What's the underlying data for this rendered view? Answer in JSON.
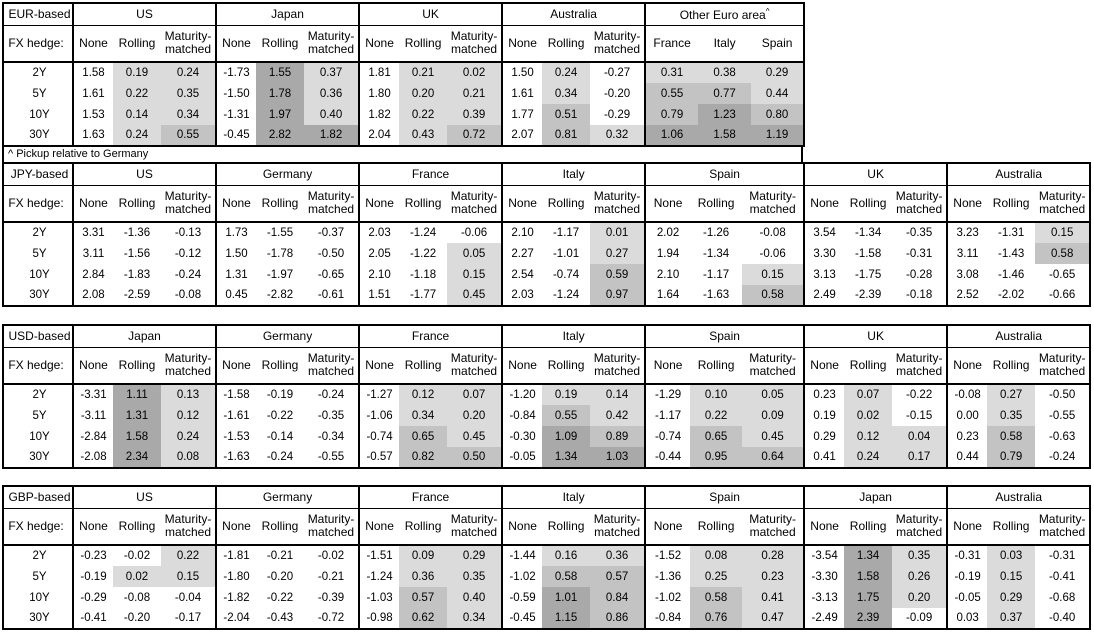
{
  "footnote": "^ Pickup relative to Germany",
  "row_header_label": "FX hedge:",
  "hedge_types": [
    "None",
    "Rolling",
    "Maturity-matched"
  ],
  "maturities": [
    "2Y",
    "5Y",
    "10Y",
    "30Y"
  ],
  "shading": {
    "rule": "Rolling and Maturity-matched cells (and all Other-Euro-area cells) are shaded by value; the None column is never shaded",
    "colors": {
      "none": "#ffffff",
      "light": "#dbdbdb",
      "medium": "#c3c3c3",
      "dark": "#a9a9a9"
    },
    "thresholds": {
      "light_above": 0,
      "medium_at": 0.5,
      "dark_at": 1.0
    }
  },
  "chart_data": [
    {
      "type": "table",
      "base": "EUR-based",
      "row_labels": [
        "2Y",
        "5Y",
        "10Y",
        "30Y"
      ],
      "groups": [
        {
          "name": "US",
          "columns": [
            "None",
            "Rolling",
            "Maturity-matched"
          ],
          "values": [
            [
              1.58,
              0.19,
              0.24
            ],
            [
              1.61,
              0.22,
              0.35
            ],
            [
              1.53,
              0.14,
              0.34
            ],
            [
              1.63,
              0.24,
              0.55
            ]
          ]
        },
        {
          "name": "Japan",
          "columns": [
            "None",
            "Rolling",
            "Maturity-matched"
          ],
          "values": [
            [
              -1.73,
              1.55,
              0.37
            ],
            [
              -1.5,
              1.78,
              0.36
            ],
            [
              -1.31,
              1.97,
              0.4
            ],
            [
              -0.45,
              2.82,
              1.82
            ]
          ]
        },
        {
          "name": "UK",
          "columns": [
            "None",
            "Rolling",
            "Maturity-matched"
          ],
          "values": [
            [
              1.81,
              0.21,
              0.02
            ],
            [
              1.8,
              0.2,
              0.21
            ],
            [
              1.82,
              0.22,
              0.39
            ],
            [
              2.04,
              0.43,
              0.72
            ]
          ]
        },
        {
          "name": "Australia",
          "columns": [
            "None",
            "Rolling",
            "Maturity-matched"
          ],
          "values": [
            [
              1.5,
              0.24,
              -0.27
            ],
            [
              1.61,
              0.34,
              -0.2
            ],
            [
              1.77,
              0.51,
              -0.29
            ],
            [
              2.07,
              0.81,
              0.32
            ]
          ]
        },
        {
          "name": "Other Euro area",
          "superscript": "^",
          "columns": [
            "France",
            "Italy",
            "Spain"
          ],
          "values": [
            [
              0.31,
              0.38,
              0.29
            ],
            [
              0.55,
              0.77,
              0.44
            ],
            [
              0.79,
              1.23,
              0.8
            ],
            [
              1.06,
              1.58,
              1.19
            ]
          ]
        }
      ]
    },
    {
      "type": "table",
      "base": "JPY-based",
      "row_labels": [
        "2Y",
        "5Y",
        "10Y",
        "30Y"
      ],
      "groups": [
        {
          "name": "US",
          "columns": [
            "None",
            "Rolling",
            "Maturity-matched"
          ],
          "values": [
            [
              3.31,
              -1.36,
              -0.13
            ],
            [
              3.11,
              -1.56,
              -0.12
            ],
            [
              2.84,
              -1.83,
              -0.24
            ],
            [
              2.08,
              -2.59,
              -0.08
            ]
          ]
        },
        {
          "name": "Germany",
          "columns": [
            "None",
            "Rolling",
            "Maturity-matched"
          ],
          "values": [
            [
              1.73,
              -1.55,
              -0.37
            ],
            [
              1.5,
              -1.78,
              -0.5
            ],
            [
              1.31,
              -1.97,
              -0.65
            ],
            [
              0.45,
              -2.82,
              -0.61
            ]
          ]
        },
        {
          "name": "France",
          "columns": [
            "None",
            "Rolling",
            "Maturity-matched"
          ],
          "values": [
            [
              2.03,
              -1.24,
              -0.06
            ],
            [
              2.05,
              -1.22,
              0.05
            ],
            [
              2.1,
              -1.18,
              0.15
            ],
            [
              1.51,
              -1.77,
              0.45
            ]
          ]
        },
        {
          "name": "Italy",
          "columns": [
            "None",
            "Rolling",
            "Maturity-matched"
          ],
          "values": [
            [
              2.1,
              -1.17,
              0.01
            ],
            [
              2.27,
              -1.01,
              0.27
            ],
            [
              2.54,
              -0.74,
              0.59
            ],
            [
              2.03,
              -1.24,
              0.97
            ]
          ]
        },
        {
          "name": "Spain",
          "columns": [
            "None",
            "Rolling",
            "Maturity-matched"
          ],
          "values": [
            [
              2.02,
              -1.26,
              -0.08
            ],
            [
              1.94,
              -1.34,
              -0.06
            ],
            [
              2.1,
              -1.17,
              0.15
            ],
            [
              1.64,
              -1.63,
              0.58
            ]
          ]
        },
        {
          "name": "UK",
          "columns": [
            "None",
            "Rolling",
            "Maturity-matched"
          ],
          "values": [
            [
              3.54,
              -1.34,
              -0.35
            ],
            [
              3.3,
              -1.58,
              -0.31
            ],
            [
              3.13,
              -1.75,
              -0.28
            ],
            [
              2.49,
              -2.39,
              -0.18
            ]
          ]
        },
        {
          "name": "Australia",
          "columns": [
            "None",
            "Rolling",
            "Maturity-matched"
          ],
          "values": [
            [
              3.23,
              -1.31,
              0.15
            ],
            [
              3.11,
              -1.43,
              0.58
            ],
            [
              3.08,
              -1.46,
              -0.65
            ],
            [
              2.52,
              -2.02,
              -0.66
            ]
          ]
        }
      ]
    },
    {
      "type": "table",
      "base": "USD-based",
      "row_labels": [
        "2Y",
        "5Y",
        "10Y",
        "30Y"
      ],
      "groups": [
        {
          "name": "Japan",
          "columns": [
            "None",
            "Rolling",
            "Maturity-matched"
          ],
          "values": [
            [
              -3.31,
              1.11,
              0.13
            ],
            [
              -3.11,
              1.31,
              0.12
            ],
            [
              -2.84,
              1.58,
              0.24
            ],
            [
              -2.08,
              2.34,
              0.08
            ]
          ]
        },
        {
          "name": "Germany",
          "columns": [
            "None",
            "Rolling",
            "Maturity-matched"
          ],
          "values": [
            [
              -1.58,
              -0.19,
              -0.24
            ],
            [
              -1.61,
              -0.22,
              -0.35
            ],
            [
              -1.53,
              -0.14,
              -0.34
            ],
            [
              -1.63,
              -0.24,
              -0.55
            ]
          ]
        },
        {
          "name": "France",
          "columns": [
            "None",
            "Rolling",
            "Maturity-matched"
          ],
          "values": [
            [
              -1.27,
              0.12,
              0.07
            ],
            [
              -1.06,
              0.34,
              0.2
            ],
            [
              -0.74,
              0.65,
              0.45
            ],
            [
              -0.57,
              0.82,
              0.5
            ]
          ]
        },
        {
          "name": "Italy",
          "columns": [
            "None",
            "Rolling",
            "Maturity-matched"
          ],
          "values": [
            [
              -1.2,
              0.19,
              0.14
            ],
            [
              -0.84,
              0.55,
              0.42
            ],
            [
              -0.3,
              1.09,
              0.89
            ],
            [
              -0.05,
              1.34,
              1.03
            ]
          ]
        },
        {
          "name": "Spain",
          "columns": [
            "None",
            "Rolling",
            "Maturity-matched"
          ],
          "values": [
            [
              -1.29,
              0.1,
              0.05
            ],
            [
              -1.17,
              0.22,
              0.09
            ],
            [
              -0.74,
              0.65,
              0.45
            ],
            [
              -0.44,
              0.95,
              0.64
            ]
          ]
        },
        {
          "name": "UK",
          "columns": [
            "None",
            "Rolling",
            "Maturity-matched"
          ],
          "values": [
            [
              0.23,
              0.07,
              -0.22
            ],
            [
              0.19,
              0.02,
              -0.15
            ],
            [
              0.29,
              0.12,
              0.04
            ],
            [
              0.41,
              0.24,
              0.17
            ]
          ]
        },
        {
          "name": "Australia",
          "columns": [
            "None",
            "Rolling",
            "Maturity-matched"
          ],
          "values": [
            [
              -0.08,
              0.27,
              -0.5
            ],
            [
              0.0,
              0.35,
              -0.55
            ],
            [
              0.23,
              0.58,
              -0.63
            ],
            [
              0.44,
              0.79,
              -0.24
            ]
          ]
        }
      ]
    },
    {
      "type": "table",
      "base": "GBP-based",
      "row_labels": [
        "2Y",
        "5Y",
        "10Y",
        "30Y"
      ],
      "groups": [
        {
          "name": "US",
          "columns": [
            "None",
            "Rolling",
            "Maturity-matched"
          ],
          "values": [
            [
              -0.23,
              -0.02,
              0.22
            ],
            [
              -0.19,
              0.02,
              0.15
            ],
            [
              -0.29,
              -0.08,
              -0.04
            ],
            [
              -0.41,
              -0.2,
              -0.17
            ]
          ]
        },
        {
          "name": "Germany",
          "columns": [
            "None",
            "Rolling",
            "Maturity-matched"
          ],
          "values": [
            [
              -1.81,
              -0.21,
              -0.02
            ],
            [
              -1.8,
              -0.2,
              -0.21
            ],
            [
              -1.82,
              -0.22,
              -0.39
            ],
            [
              -2.04,
              -0.43,
              -0.72
            ]
          ]
        },
        {
          "name": "France",
          "columns": [
            "None",
            "Rolling",
            "Maturity-matched"
          ],
          "values": [
            [
              -1.51,
              0.09,
              0.29
            ],
            [
              -1.24,
              0.36,
              0.35
            ],
            [
              -1.03,
              0.57,
              0.4
            ],
            [
              -0.98,
              0.62,
              0.34
            ]
          ]
        },
        {
          "name": "Italy",
          "columns": [
            "None",
            "Rolling",
            "Maturity-matched"
          ],
          "values": [
            [
              -1.44,
              0.16,
              0.36
            ],
            [
              -1.02,
              0.58,
              0.57
            ],
            [
              -0.59,
              1.01,
              0.84
            ],
            [
              -0.45,
              1.15,
              0.86
            ]
          ]
        },
        {
          "name": "Spain",
          "columns": [
            "None",
            "Rolling",
            "Maturity-matched"
          ],
          "values": [
            [
              -1.52,
              0.08,
              0.28
            ],
            [
              -1.36,
              0.25,
              0.23
            ],
            [
              -1.02,
              0.58,
              0.41
            ],
            [
              -0.84,
              0.76,
              0.47
            ]
          ]
        },
        {
          "name": "Japan",
          "columns": [
            "None",
            "Rolling",
            "Maturity-matched"
          ],
          "values": [
            [
              -3.54,
              1.34,
              0.35
            ],
            [
              -3.3,
              1.58,
              0.26
            ],
            [
              -3.13,
              1.75,
              0.2
            ],
            [
              -2.49,
              2.39,
              -0.09
            ]
          ]
        },
        {
          "name": "Australia",
          "columns": [
            "None",
            "Rolling",
            "Maturity-matched"
          ],
          "values": [
            [
              -0.31,
              0.03,
              -0.31
            ],
            [
              -0.19,
              0.15,
              -0.41
            ],
            [
              -0.05,
              0.29,
              -0.68
            ],
            [
              0.03,
              0.37,
              -0.4
            ]
          ]
        }
      ]
    }
  ]
}
